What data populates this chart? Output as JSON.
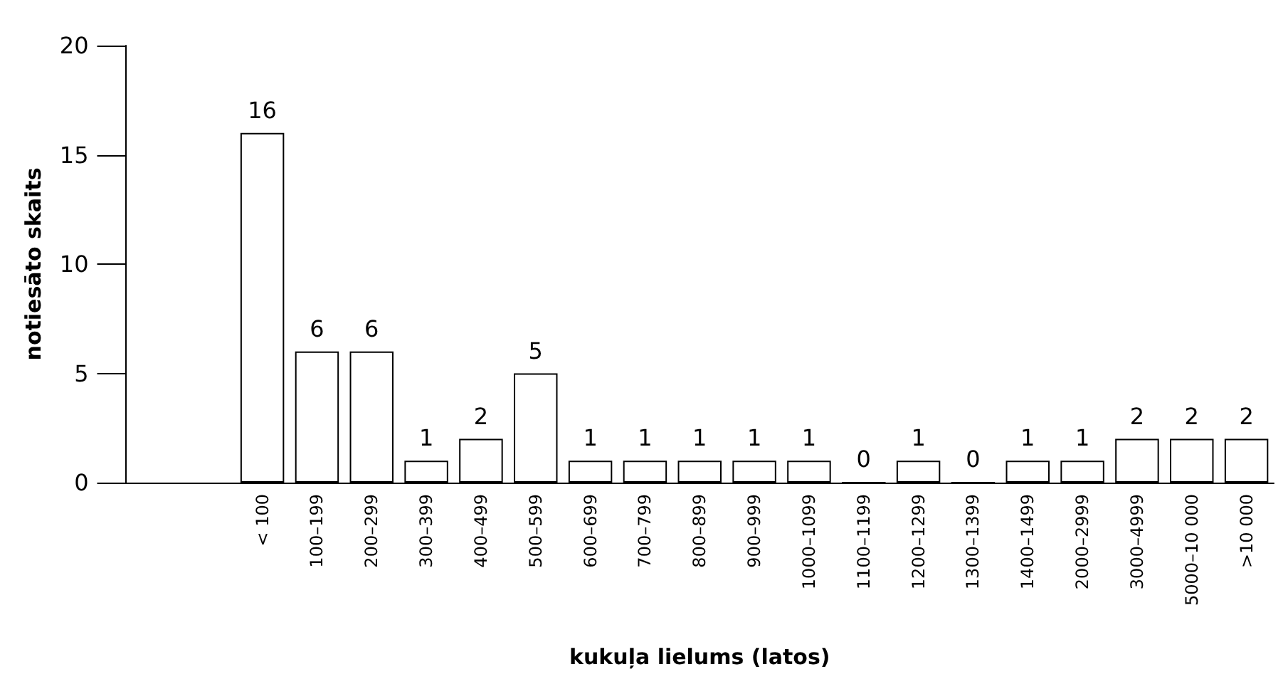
{
  "chart_data": {
    "type": "bar",
    "xlabel": "kukuļa lielums (latos)",
    "ylabel": "notiesāto skaits",
    "categories": [
      null,
      null,
      "< 100",
      "100–199",
      "200–299",
      "300–399",
      "400–499",
      "500–599",
      "600–699",
      "700–799",
      "800–899",
      "900–999",
      "1000–1099",
      "1100–1199",
      "1200–1299",
      "1300–1399",
      "1400–1499",
      "2000–2999",
      "3000–4999",
      "5000–10 000",
      ">10 000"
    ],
    "values": [
      null,
      null,
      16,
      6,
      6,
      1,
      2,
      5,
      1,
      1,
      1,
      1,
      1,
      0,
      1,
      0,
      1,
      1,
      2,
      2,
      2
    ],
    "color": "#ffffff",
    "ylim": [
      0,
      20
    ],
    "yticks": [
      0,
      5,
      10,
      15,
      20
    ],
    "grid": false,
    "data_labels": true
  }
}
